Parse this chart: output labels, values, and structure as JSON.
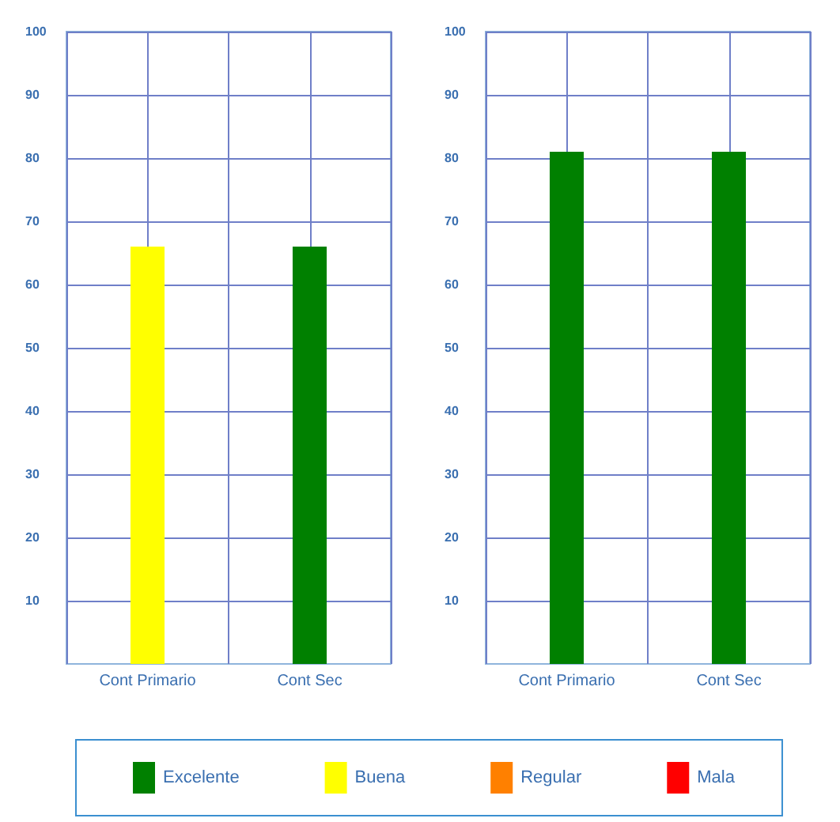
{
  "chart_data": [
    {
      "type": "bar",
      "categories": [
        "Cont Primario",
        "Cont Sec"
      ],
      "ylim": [
        0,
        100
      ],
      "yticks": [
        10,
        20,
        30,
        40,
        50,
        60,
        70,
        80,
        90,
        100
      ],
      "grid": true,
      "legend": "bottom",
      "series": [
        {
          "name": "Excelente",
          "color": "#008000",
          "values": [
            null,
            66
          ]
        },
        {
          "name": "Buena",
          "color": "#ffff00",
          "values": [
            66,
            null
          ]
        },
        {
          "name": "Regular",
          "color": "#ff8000",
          "values": [
            null,
            null
          ]
        },
        {
          "name": "Mala",
          "color": "#ff0000",
          "values": [
            null,
            null
          ]
        }
      ]
    },
    {
      "type": "bar",
      "categories": [
        "Cont Primario",
        "Cont Sec"
      ],
      "ylim": [
        0,
        100
      ],
      "yticks": [
        10,
        20,
        30,
        40,
        50,
        60,
        70,
        80,
        90,
        100
      ],
      "grid": true,
      "series": [
        {
          "color": "#008000",
          "values": [
            81,
            81
          ]
        }
      ]
    }
  ]
}
